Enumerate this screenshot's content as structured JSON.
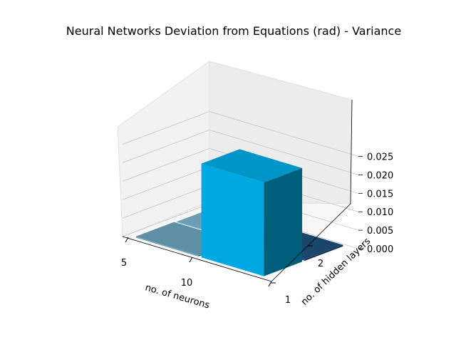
{
  "chart_data": {
    "type": "bar",
    "projection": "3d",
    "title": "Neural Networks Deviation from Equations (rad) - Variance",
    "xlabel": "no. of neurons",
    "ylabel": "no. of hidden layers",
    "zlabel": "",
    "x_ticks": [
      "5",
      "10"
    ],
    "y_ticks": [
      "1",
      "2"
    ],
    "z_ticks": [
      "0.000",
      "0.005",
      "0.010",
      "0.015",
      "0.020",
      "0.025"
    ],
    "zlim": [
      0,
      0.028
    ],
    "bars": [
      {
        "neurons": 5,
        "hidden_layers": 1,
        "value": 0.0003,
        "color": "#6aa3bc"
      },
      {
        "neurons": 10,
        "hidden_layers": 1,
        "value": 0.0254,
        "color": "#00a9e2"
      },
      {
        "neurons": 5,
        "hidden_layers": 2,
        "value": 0.0,
        "color": "#7ab3cc"
      },
      {
        "neurons": 10,
        "hidden_layers": 2,
        "value": 0.0004,
        "color": "#1f4f7a"
      }
    ],
    "grid": true
  }
}
